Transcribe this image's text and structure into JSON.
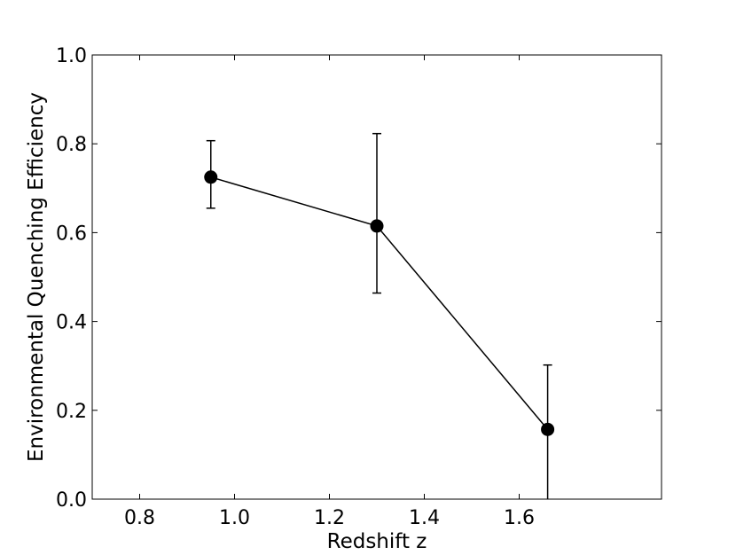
{
  "chart_data": {
    "type": "line",
    "xlabel": "Redshift z",
    "ylabel": "Environmental Quenching Efficiency",
    "xlim": [
      0.7,
      1.9
    ],
    "ylim": [
      0.0,
      1.0
    ],
    "xticks": [
      0.8,
      1.0,
      1.2,
      1.4,
      1.6
    ],
    "xtick_labels": [
      "0.8",
      "1.0",
      "1.2",
      "1.4",
      "1.6"
    ],
    "yticks": [
      0.0,
      0.2,
      0.4,
      0.6,
      0.8,
      1.0
    ],
    "ytick_labels": [
      "0.0",
      "0.2",
      "0.4",
      "0.6",
      "0.8",
      "1.0"
    ],
    "grid": false,
    "legend": "none",
    "series": [
      {
        "color": "#000000",
        "marker": "circle",
        "points": [
          {
            "x": 0.95,
            "y": 0.725,
            "err_low": 0.655,
            "err_high": 0.807
          },
          {
            "x": 1.3,
            "y": 0.615,
            "err_low": 0.464,
            "err_high": 0.823
          },
          {
            "x": 1.66,
            "y": 0.157,
            "err_low": 0.0,
            "err_high": 0.302
          }
        ]
      }
    ]
  }
}
